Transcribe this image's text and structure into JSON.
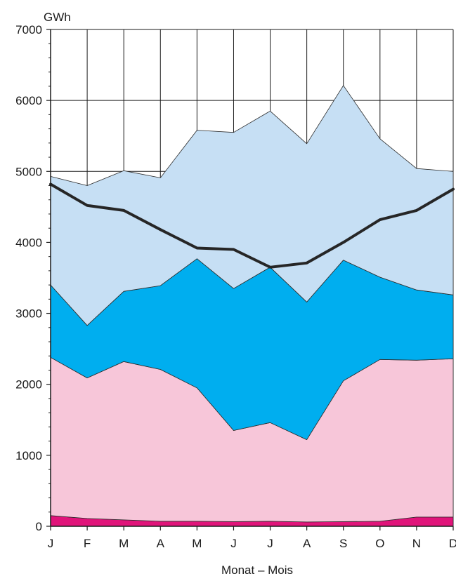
{
  "chart_data": {
    "type": "area",
    "title": "",
    "ylabel": "GWh",
    "xlabel": "Monat – Mois",
    "ylim": [
      0,
      7000
    ],
    "yticks": [
      0,
      1000,
      2000,
      3000,
      4000,
      5000,
      6000,
      7000
    ],
    "categories": [
      "J",
      "F",
      "M",
      "A",
      "M",
      "J",
      "J",
      "A",
      "S",
      "O",
      "N",
      "D"
    ],
    "grid": true,
    "stacked_series": [
      {
        "color": "#e0147a",
        "values": [
          150,
          110,
          90,
          70,
          70,
          65,
          70,
          60,
          65,
          70,
          130,
          130
        ]
      },
      {
        "color": "#f7c6d9",
        "values": [
          2230,
          1980,
          2230,
          2140,
          1880,
          1285,
          1390,
          1160,
          1985,
          2280,
          2210,
          2230
        ]
      },
      {
        "color": "#00aeef",
        "values": [
          1020,
          740,
          990,
          1180,
          1820,
          2000,
          2190,
          1940,
          1700,
          1160,
          990,
          900
        ]
      },
      {
        "color": "#c6dff4",
        "values": [
          1530,
          1970,
          1700,
          1520,
          1810,
          2200,
          2200,
          2230,
          2460,
          1950,
          1710,
          1740
        ]
      }
    ],
    "line_series": {
      "color": "#262626",
      "values": [
        4820,
        4520,
        4450,
        4180,
        3920,
        3900,
        3650,
        3710,
        4000,
        4320,
        4450,
        4750
      ]
    }
  }
}
